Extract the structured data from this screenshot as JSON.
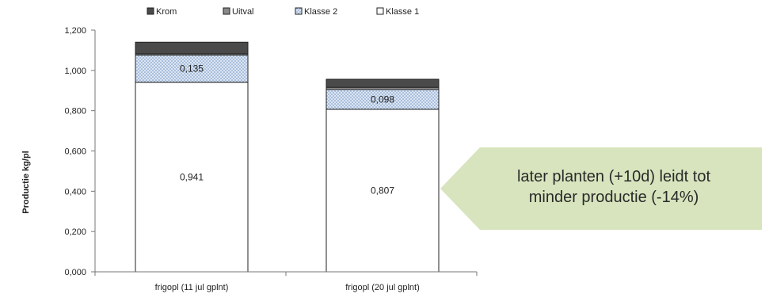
{
  "chart_data": {
    "type": "bar",
    "stacked": true,
    "categories": [
      "frigopl (11 jul gplnt)",
      "frigopl (20 jul gplnt)"
    ],
    "series": [
      {
        "name": "Klasse 1",
        "values": [
          0.941,
          0.807
        ],
        "color": "#ffffff",
        "labels": [
          "0,941",
          "0,807"
        ]
      },
      {
        "name": "Klasse 2",
        "values": [
          0.135,
          0.098
        ],
        "color": "#dbe6f4",
        "pattern": "dotted",
        "labels": [
          "0,135",
          "0,098"
        ]
      },
      {
        "name": "Uitval",
        "values": [
          0.006,
          0.011
        ],
        "color": "#8a8a8a",
        "labels": [
          "",
          ""
        ]
      },
      {
        "name": "Krom",
        "values": [
          0.058,
          0.04
        ],
        "color": "#4a4a4a",
        "labels": [
          "",
          ""
        ]
      }
    ],
    "legend_order": [
      "Krom",
      "Uitval",
      "Klasse 2",
      "Klasse 1"
    ],
    "legend_placement": "top",
    "ylabel": "Productie kg/pl",
    "ylim": [
      0,
      1.2
    ],
    "yticks": [
      "0,000",
      "0,200",
      "0,400",
      "0,600",
      "0,800",
      "1,000",
      "1,200"
    ],
    "grid": false
  },
  "callout": {
    "line1": "later planten (+10d) leidt tot",
    "line2": "minder productie (-14%)",
    "color": "#d7e4bd"
  }
}
